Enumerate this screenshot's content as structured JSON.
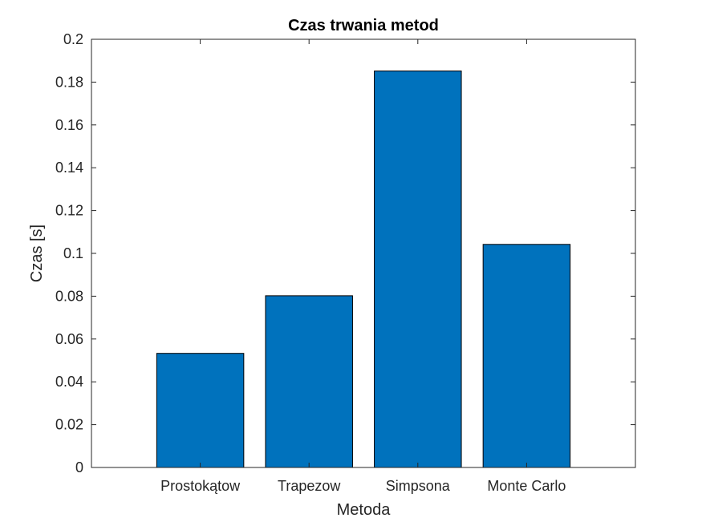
{
  "chart_data": {
    "type": "bar",
    "title": "Czas trwania metod",
    "xlabel": "Metoda",
    "ylabel": "Czas [s]",
    "categories": [
      "Prostokątow",
      "Trapezow",
      "Simpsona",
      "Monte Carlo"
    ],
    "values": [
      0.0533,
      0.0802,
      0.1852,
      0.1042
    ],
    "ylim": [
      0,
      0.2
    ],
    "yticks": [
      "0",
      "0.02",
      "0.04",
      "0.06",
      "0.08",
      "0.1",
      "0.12",
      "0.14",
      "0.16",
      "0.18",
      "0.2"
    ],
    "grid": false,
    "legend": "none",
    "bar_color": "#0072BD",
    "edge_color": "#000000"
  }
}
